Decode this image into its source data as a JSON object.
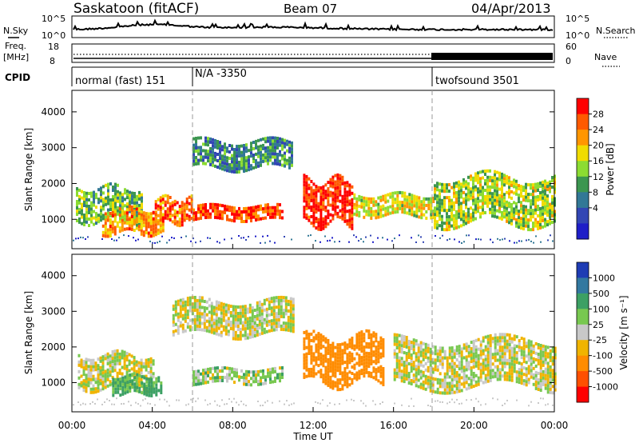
{
  "header": {
    "station": "Saskatoon (fitACF)",
    "beam": "Beam 07",
    "date": "04/Apr/2013"
  },
  "nsky_panel": {
    "left_label": "N.Sky",
    "left_ticks": [
      "10^5",
      "10^0"
    ],
    "right_ticks": [
      "10^5",
      "10^0"
    ],
    "right_label": "N.Search"
  },
  "freq_panel": {
    "left_label_top": "Freq.",
    "left_label_unit": "[MHz]",
    "left_ticks": [
      "18",
      "8"
    ],
    "right_ticks": [
      "60",
      "0"
    ],
    "right_label": "Nave"
  },
  "cpid_panel": {
    "label": "CPID",
    "segments": [
      {
        "text": "normal (fast) 151",
        "start_hour": 0
      },
      {
        "text": "N/A -3350",
        "start_hour": 6
      },
      {
        "text": "twofsound 3501",
        "start_hour": 18
      }
    ]
  },
  "chart_data": [
    {
      "type": "heatmap",
      "ylabel": "Slant Range [km]",
      "ylim": [
        180,
        4600
      ],
      "y_ticks": [
        1000,
        2000,
        3000,
        4000
      ],
      "colorbar": {
        "label": "Power [dB]",
        "ticks": [
          "28",
          "24",
          "20",
          "16",
          "12",
          "8",
          "4"
        ],
        "colors": [
          "#ff0000",
          "#ff5a00",
          "#ff9600",
          "#f0dc00",
          "#8cdc32",
          "#3c9650",
          "#327896",
          "#3246b4",
          "#1e1ec8"
        ]
      },
      "echo_regions": [
        {
          "x": [
            0.2,
            3.5
          ],
          "y": [
            1000,
            1900
          ],
          "level": 14
        },
        {
          "x": [
            1.5,
            4.5
          ],
          "y": [
            600,
            1300
          ],
          "level": 22
        },
        {
          "x": [
            4.0,
            6.0
          ],
          "y": [
            900,
            1600
          ],
          "level": 24
        },
        {
          "x": [
            6.0,
            10.5
          ],
          "y": [
            1000,
            1400
          ],
          "level": 26
        },
        {
          "x": [
            6.0,
            11.0
          ],
          "y": [
            2400,
            3200
          ],
          "level": 10
        },
        {
          "x": [
            11.5,
            14.0
          ],
          "y": [
            900,
            2100
          ],
          "level": 28
        },
        {
          "x": [
            14.0,
            18.0
          ],
          "y": [
            1100,
            1700
          ],
          "level": 18
        },
        {
          "x": [
            18.0,
            24.0
          ],
          "y": [
            900,
            2200
          ],
          "level": 16
        }
      ]
    },
    {
      "type": "heatmap",
      "ylabel": "Slant Range [km]",
      "ylim": [
        180,
        4600
      ],
      "y_ticks": [
        1000,
        2000,
        3000,
        4000
      ],
      "xlabel": "Time UT",
      "x_ticks": [
        "00:00",
        "04:00",
        "08:00",
        "12:00",
        "16:00",
        "20:00",
        "00:00"
      ],
      "xlim": [
        0,
        24
      ],
      "colorbar": {
        "label": "Velocity [m s⁻¹]",
        "ticks": [
          "1000",
          "500",
          "100",
          "25",
          "-25",
          "-100",
          "-500",
          "-1000"
        ],
        "colors": [
          "#1e3cb4",
          "#3278a0",
          "#3ca064",
          "#78c850",
          "#c8c8c8",
          "#f0b400",
          "#ff8c00",
          "#ff5000",
          "#ff0000"
        ]
      },
      "echo_regions": [
        {
          "x": [
            0.3,
            4.0
          ],
          "y": [
            900,
            1800
          ],
          "value": 0
        },
        {
          "x": [
            2.0,
            4.5
          ],
          "y": [
            700,
            1200
          ],
          "value": 150
        },
        {
          "x": [
            6.0,
            10.5
          ],
          "y": [
            1000,
            1400
          ],
          "value": 50
        },
        {
          "x": [
            5.0,
            11.0
          ],
          "y": [
            2400,
            3300
          ],
          "value": 0
        },
        {
          "x": [
            11.5,
            15.5
          ],
          "y": [
            1000,
            2300
          ],
          "value": -300
        },
        {
          "x": [
            16.0,
            24.0
          ],
          "y": [
            900,
            2200
          ],
          "value": 0
        }
      ]
    }
  ]
}
